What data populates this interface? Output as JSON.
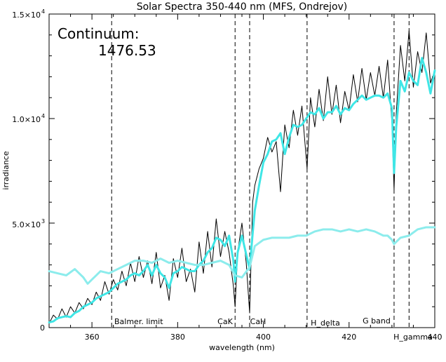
{
  "chart_data": {
    "type": "line",
    "title": "Solar Spectra 350-440 nm (MFS, Ondrejov)",
    "xlabel": "wavelength (nm)",
    "ylabel": "irradiance",
    "xlim": [
      350,
      440
    ],
    "ylim": [
      0,
      15000
    ],
    "x_tick_values": [
      360,
      380,
      400,
      420,
      440
    ],
    "x_tick_labels": [
      "360",
      "380",
      "400",
      "420",
      "440"
    ],
    "y_tick_values": [
      0,
      5000,
      10000,
      15000
    ],
    "y_tick_labels": {
      "t0": "0",
      "t1_mant": "5.0×10",
      "t1_exp": "3",
      "t2_mant": "1.0×10",
      "t2_exp": "4",
      "t3_mant": "1.5×10",
      "t3_exp": "4"
    },
    "grid": false,
    "annotation_label": "Continuum:",
    "annotation_value": "1476.53",
    "reference_lines": [
      {
        "x": 364.6,
        "label": "Balmer. limit"
      },
      {
        "x": 393.4,
        "label": "CaK"
      },
      {
        "x": 396.8,
        "label": "CaH"
      },
      {
        "x": 410.2,
        "label": "H_delta"
      },
      {
        "x": 430.5,
        "label": "G band"
      },
      {
        "x": 434.0,
        "label": "H_gamma"
      }
    ],
    "series": [
      {
        "color": "#000000",
        "style": "solid",
        "x": [
          350.0,
          351.0,
          352.0,
          353.0,
          354.0,
          355.0,
          356.0,
          357.0,
          358.0,
          359.0,
          360.0,
          361.0,
          362.0,
          363.0,
          364.0,
          365.0,
          366.0,
          367.0,
          368.0,
          369.0,
          370.0,
          371.0,
          372.0,
          373.0,
          374.0,
          375.0,
          376.0,
          377.0,
          378.0,
          379.0,
          380.0,
          381.0,
          382.0,
          383.0,
          384.0,
          385.0,
          386.0,
          387.0,
          388.0,
          389.0,
          390.0,
          391.0,
          392.0,
          393.0,
          393.4,
          394.0,
          395.0,
          396.0,
          396.8,
          397.5,
          398.0,
          399.0,
          400.0,
          401.0,
          402.0,
          403.0,
          404.0,
          405.0,
          406.0,
          407.0,
          408.0,
          409.0,
          410.2,
          411.0,
          412.0,
          413.0,
          414.0,
          415.0,
          416.0,
          417.0,
          418.0,
          419.0,
          420.0,
          421.0,
          422.0,
          423.0,
          424.0,
          425.0,
          426.0,
          427.0,
          428.0,
          429.0,
          430.0,
          430.5,
          431.0,
          432.0,
          433.0,
          434.0,
          435.0,
          436.0,
          437.0,
          438.0,
          439.0,
          440.0
        ],
        "y": [
          200,
          600,
          400,
          900,
          500,
          1000,
          700,
          1200,
          900,
          1400,
          1100,
          1700,
          1300,
          2200,
          1600,
          2300,
          1800,
          2700,
          2000,
          3100,
          2200,
          3400,
          2400,
          3200,
          2100,
          3600,
          1900,
          2500,
          1300,
          3300,
          2400,
          3800,
          2200,
          2800,
          1700,
          4100,
          2600,
          4600,
          2900,
          5200,
          3400,
          4600,
          3600,
          2000,
          1000,
          3600,
          5000,
          3100,
          700,
          6000,
          6800,
          7600,
          8100,
          9100,
          8400,
          8900,
          6500,
          9700,
          8600,
          10400,
          9200,
          10600,
          7600,
          11000,
          9600,
          11400,
          9900,
          12000,
          10200,
          11600,
          9800,
          11300,
          10400,
          12100,
          10800,
          12400,
          10900,
          12200,
          11100,
          12500,
          11000,
          12800,
          9800,
          6600,
          10200,
          13500,
          11800,
          14200,
          11500,
          13200,
          12200,
          14100,
          11700,
          12300
        ]
      },
      {
        "color": "#3fe6e6",
        "style": "solid",
        "x": [
          350,
          351,
          352,
          353,
          354,
          355,
          356,
          357,
          358,
          359,
          360,
          361,
          362,
          363,
          364,
          365,
          366,
          367,
          368,
          369,
          370,
          371,
          372,
          373,
          374,
          375,
          376,
          377,
          378,
          379,
          380,
          381,
          382,
          383,
          384,
          385,
          386,
          387,
          388,
          389,
          390,
          391,
          392,
          393,
          393.4,
          394,
          395,
          396,
          396.8,
          397.5,
          398,
          399,
          400,
          401,
          402,
          403,
          404,
          405,
          406,
          407,
          408,
          409,
          410,
          411,
          412,
          413,
          414,
          415,
          416,
          417,
          418,
          419,
          420,
          421,
          422,
          423,
          424,
          425,
          426,
          427,
          428,
          429,
          430,
          430.5,
          431,
          432,
          433,
          434,
          435,
          436,
          437,
          438,
          439,
          440
        ],
        "y": [
          250,
          300,
          450,
          500,
          550,
          500,
          700,
          800,
          1000,
          1100,
          1200,
          1400,
          1500,
          1600,
          1700,
          1900,
          2100,
          2200,
          2300,
          2500,
          2600,
          2500,
          2700,
          3000,
          2500,
          3000,
          2600,
          2400,
          1900,
          2600,
          2700,
          2900,
          2800,
          2700,
          2700,
          3000,
          3200,
          3600,
          3800,
          4300,
          4200,
          3900,
          4400,
          3200,
          2200,
          3600,
          4400,
          3500,
          2800,
          4500,
          5600,
          6800,
          7900,
          8300,
          8900,
          9000,
          9300,
          8300,
          9100,
          9700,
          9600,
          9700,
          10000,
          10300,
          10200,
          10500,
          10000,
          10300,
          10300,
          10600,
          10200,
          10500,
          10400,
          10700,
          10900,
          11100,
          10900,
          11000,
          11100,
          11100,
          11000,
          11200,
          10500,
          7400,
          9600,
          11800,
          11300,
          12200,
          11800,
          11600,
          12900,
          12200,
          11200,
          12300
        ]
      },
      {
        "color": "#8cecec",
        "style": "solid",
        "x": [
          350,
          352,
          354,
          356,
          358,
          359,
          360,
          362,
          364,
          366,
          368,
          370,
          372,
          374,
          376,
          378,
          380,
          382,
          384,
          386,
          388,
          390,
          392,
          393.4,
          395,
          396.8,
          398,
          400,
          402,
          404,
          406,
          408,
          410,
          412,
          414,
          416,
          418,
          420,
          422,
          424,
          426,
          428,
          429,
          430,
          430.5,
          431,
          432,
          434,
          436,
          438,
          440
        ],
        "y": [
          2700,
          2600,
          2500,
          2800,
          2400,
          2100,
          2300,
          2700,
          2600,
          2800,
          3000,
          3200,
          3200,
          3100,
          3300,
          3100,
          3200,
          3100,
          3000,
          3000,
          3100,
          3200,
          3000,
          2500,
          2400,
          2900,
          3900,
          4200,
          4300,
          4300,
          4300,
          4400,
          4400,
          4600,
          4700,
          4700,
          4600,
          4700,
          4600,
          4700,
          4600,
          4400,
          4400,
          4200,
          4000,
          4100,
          4300,
          4400,
          4700,
          4800,
          4800
        ]
      }
    ]
  }
}
